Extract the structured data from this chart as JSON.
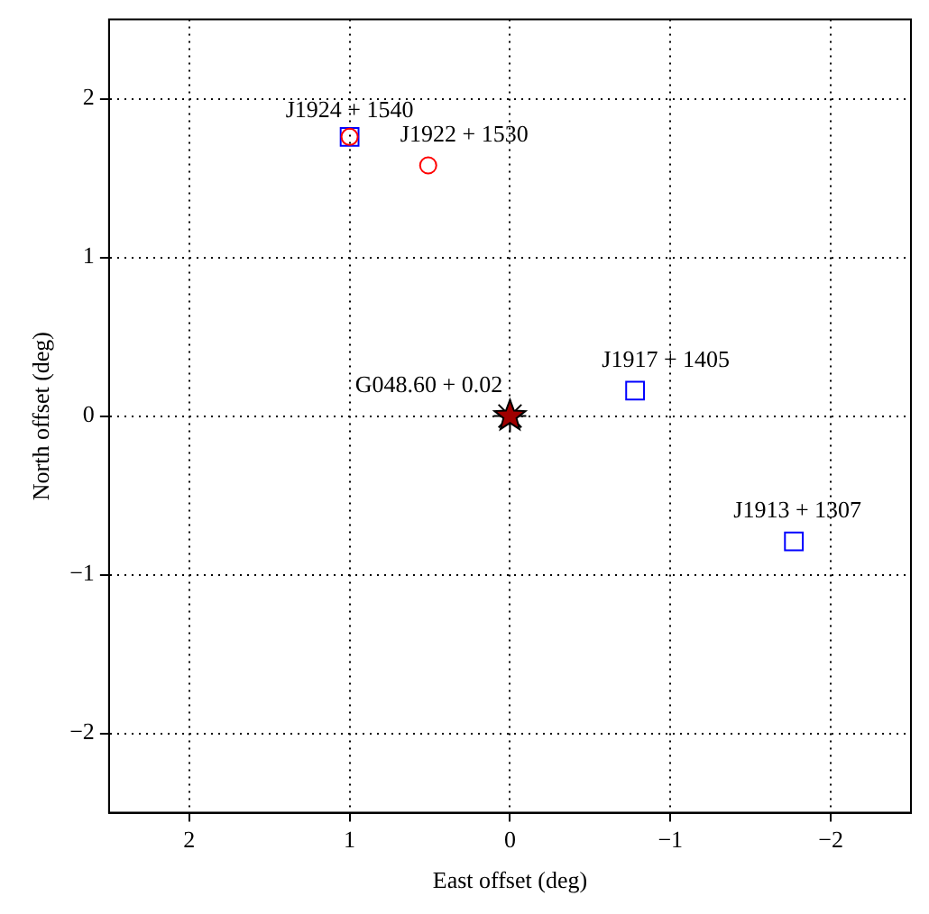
{
  "chart_data": {
    "type": "scatter",
    "xlabel": "East offset (deg)",
    "ylabel": "North offset (deg)",
    "xlim": [
      2.5,
      -2.5
    ],
    "ylim": [
      -2.5,
      2.5
    ],
    "xticks": [
      2,
      1,
      0,
      {
        "value": -1,
        "label": "−1"
      },
      {
        "value": -2,
        "label": "−2"
      }
    ],
    "yticks": [
      {
        "value": -2,
        "label": "−2"
      },
      {
        "value": -1,
        "label": "−1"
      },
      0,
      1,
      2
    ],
    "grid": true,
    "legend": false,
    "series": [
      {
        "type": "scatter",
        "marker": "square",
        "color": "#0000ff",
        "x": [
          1.0,
          -0.78,
          -1.77
        ],
        "values": [
          1.76,
          0.16,
          -0.79
        ]
      },
      {
        "type": "scatter",
        "marker": "circle",
        "color": "#ff0000",
        "x": [
          1.0,
          0.51
        ],
        "values": [
          1.76,
          1.58
        ]
      },
      {
        "type": "scatter",
        "marker": "star",
        "color": "#a00000",
        "x": [
          0
        ],
        "values": [
          0
        ]
      }
    ],
    "annotations": [
      {
        "text": "J1924 + 1540",
        "x": 1.0,
        "y": 1.76
      },
      {
        "text": "J1922 + 1530",
        "x": 0.51,
        "y": 1.58
      },
      {
        "text": "J1917 + 1405",
        "x": -0.78,
        "y": 0.16
      },
      {
        "text": "G048.60 + 0.02",
        "x": 0,
        "y": 0
      },
      {
        "text": "J1913 + 1307",
        "x": -1.77,
        "y": -0.79
      }
    ]
  }
}
